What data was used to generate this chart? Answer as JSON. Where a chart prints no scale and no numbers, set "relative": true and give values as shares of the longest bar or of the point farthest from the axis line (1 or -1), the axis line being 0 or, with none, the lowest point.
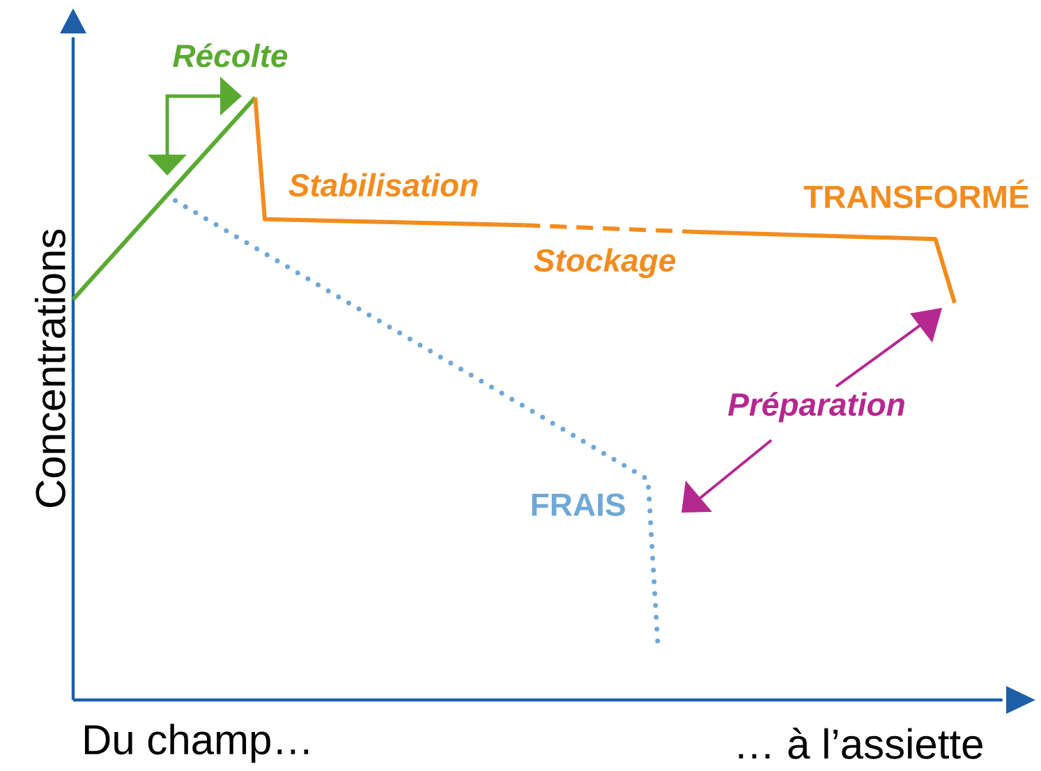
{
  "chart_data": {
    "type": "line",
    "relative": true,
    "ylabel": "Concentrations",
    "categories": [
      null,
      null,
      null,
      null,
      null,
      null,
      null,
      null,
      null,
      null,
      null,
      null,
      null,
      null,
      null,
      null,
      null,
      null,
      null,
      null,
      null,
      null,
      null,
      null,
      null,
      null,
      null,
      null,
      null,
      null,
      null,
      null,
      null,
      null,
      null,
      null,
      null,
      null,
      null,
      null,
      null,
      null,
      null,
      null,
      null,
      null,
      null,
      null,
      null,
      null,
      null,
      null,
      null,
      null,
      null,
      null,
      null,
      null,
      null,
      null,
      null,
      null,
      null,
      null,
      null,
      null,
      null,
      null,
      null,
      null,
      null,
      null,
      null,
      null,
      null,
      null,
      null,
      null,
      null,
      null,
      null,
      null,
      null,
      null,
      null,
      null,
      null,
      null,
      null,
      null,
      null,
      null,
      null
    ],
    "series": [
      {
        "color": "#5aaa32",
        "line_style": "solid",
        "values": [
          0.665,
          null,
          null,
          null,
          null,
          null,
          null,
          null,
          null,
          null,
          null,
          null,
          null,
          null,
          null,
          null,
          null,
          null,
          null,
          1,
          null,
          null,
          null,
          null,
          null,
          null,
          null,
          null,
          null,
          null,
          null,
          null,
          null,
          null,
          null,
          null,
          null,
          null,
          null,
          null,
          null,
          null,
          null,
          null,
          null,
          null,
          null,
          null,
          null,
          null,
          null,
          null,
          null,
          null,
          null,
          null,
          null,
          null,
          null,
          null,
          null,
          null,
          null,
          null,
          null,
          null,
          null,
          null,
          null,
          null,
          null,
          null,
          null,
          null,
          null,
          null,
          null,
          null,
          null,
          null,
          null,
          null,
          null,
          null,
          null,
          null,
          null,
          null,
          null,
          null,
          null,
          null,
          null
        ]
      },
      {
        "color": "#f28c1e",
        "line_style": "solid",
        "values": [
          null,
          null,
          null,
          null,
          null,
          null,
          null,
          null,
          null,
          null,
          null,
          null,
          null,
          null,
          null,
          null,
          null,
          null,
          null,
          1,
          0.798,
          null,
          null,
          null,
          null,
          null,
          null,
          null,
          null,
          null,
          null,
          null,
          null,
          null,
          null,
          null,
          null,
          null,
          null,
          null,
          null,
          null,
          null,
          null,
          null,
          null,
          null,
          0.788,
          null,
          null,
          null,
          null,
          null,
          null,
          null,
          null,
          null,
          null,
          null,
          null,
          null,
          null,
          null,
          null,
          null,
          null,
          null,
          null,
          null,
          null,
          null,
          null,
          null,
          null,
          null,
          null,
          null,
          null,
          null,
          null,
          null,
          null,
          null,
          null,
          null,
          null,
          null,
          null,
          null,
          null,
          null,
          null,
          null
        ]
      },
      {
        "color": "#f28c1e",
        "line_style": "dashed",
        "values": [
          null,
          null,
          null,
          null,
          null,
          null,
          null,
          null,
          null,
          null,
          null,
          null,
          null,
          null,
          null,
          null,
          null,
          null,
          null,
          null,
          null,
          null,
          null,
          null,
          null,
          null,
          null,
          null,
          null,
          null,
          null,
          null,
          null,
          null,
          null,
          null,
          null,
          null,
          null,
          null,
          null,
          null,
          null,
          null,
          null,
          null,
          null,
          0.788,
          null,
          null,
          null,
          null,
          null,
          null,
          null,
          null,
          null,
          null,
          null,
          null,
          null,
          null,
          null,
          null,
          null,
          0.777,
          null,
          null,
          null,
          null,
          null,
          null,
          null,
          null,
          null,
          null,
          null,
          null,
          null,
          null,
          null,
          null,
          null,
          null,
          null,
          null,
          null,
          null,
          null,
          null,
          null,
          null,
          null
        ]
      },
      {
        "color": "#f28c1e",
        "line_style": "solid",
        "values": [
          null,
          null,
          null,
          null,
          null,
          null,
          null,
          null,
          null,
          null,
          null,
          null,
          null,
          null,
          null,
          null,
          null,
          null,
          null,
          null,
          null,
          null,
          null,
          null,
          null,
          null,
          null,
          null,
          null,
          null,
          null,
          null,
          null,
          null,
          null,
          null,
          null,
          null,
          null,
          null,
          null,
          null,
          null,
          null,
          null,
          null,
          null,
          null,
          null,
          null,
          null,
          null,
          null,
          null,
          null,
          null,
          null,
          null,
          null,
          null,
          null,
          null,
          null,
          null,
          null,
          0.777,
          null,
          null,
          null,
          null,
          null,
          null,
          null,
          null,
          null,
          null,
          null,
          null,
          null,
          null,
          null,
          null,
          null,
          null,
          null,
          null,
          null,
          null,
          null,
          null,
          0.765,
          null,
          0.659
        ]
      },
      {
        "color": "#6fa8d6",
        "line_style": "dotted",
        "values": [
          null,
          null,
          null,
          null,
          null,
          null,
          null,
          null,
          null,
          null,
          0.835,
          null,
          null,
          null,
          null,
          null,
          null,
          null,
          null,
          null,
          null,
          null,
          null,
          null,
          null,
          null,
          null,
          null,
          null,
          null,
          null,
          null,
          null,
          null,
          null,
          null,
          null,
          null,
          null,
          null,
          null,
          null,
          null,
          null,
          null,
          null,
          null,
          null,
          null,
          null,
          null,
          null,
          null,
          null,
          null,
          null,
          null,
          null,
          null,
          null,
          0.366,
          0.098,
          null,
          null,
          null,
          null,
          null,
          null,
          null,
          null,
          null,
          null,
          null,
          null,
          null,
          null,
          null,
          null,
          null,
          null,
          null,
          null,
          null,
          null,
          null,
          null,
          null,
          null,
          null,
          null,
          null,
          null,
          null
        ]
      }
    ],
    "annotations": [
      "Récolte",
      "Stabilisation",
      "Stockage",
      "TRANSFORMÉ",
      "FRAIS",
      "Préparation",
      "Du champ…",
      "… à l’assiette"
    ]
  }
}
